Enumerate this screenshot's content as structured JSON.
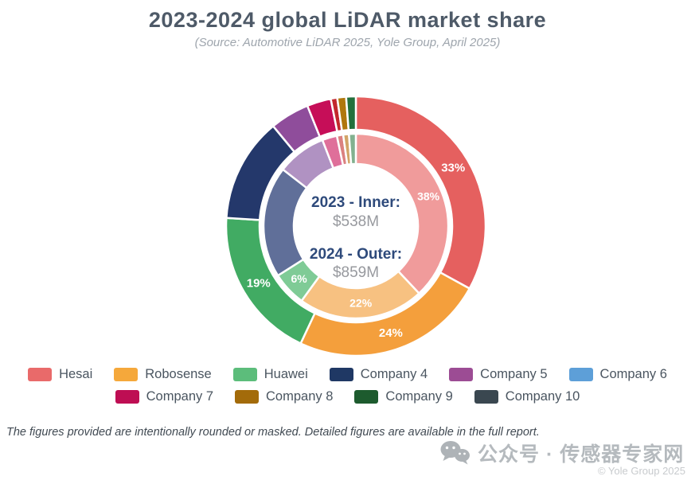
{
  "header": {
    "title": "2023-2024 global LiDAR market share",
    "subtitle": "(Source: Automotive LiDAR 2025, Yole Group, April 2025)"
  },
  "chart_data": {
    "type": "donut-double",
    "unit": "percent market share",
    "legend_position": "bottom",
    "center": {
      "inner_title": "2023 - Inner:",
      "inner_value": "$538M",
      "outer_title": "2024 - Outer:",
      "outer_value": "$859M"
    },
    "rings": [
      {
        "year": "2024",
        "position": "outer",
        "total_label": "$859M",
        "slices": [
          {
            "name": "Hesai",
            "value": 33,
            "label": "33%",
            "color": "#E5605F"
          },
          {
            "name": "Robosense",
            "value": 24,
            "label": "24%",
            "color": "#F49F3C"
          },
          {
            "name": "Huawei",
            "value": 19,
            "label": "19%",
            "color": "#41AB63"
          },
          {
            "name": "Company 4",
            "value": 13,
            "label": "",
            "color": "#24386B"
          },
          {
            "name": "Company 5",
            "value": 4.9,
            "label": "",
            "color": "#8F4D9B"
          },
          {
            "name": "Company 6",
            "value": 0,
            "label": "",
            "color": "#5D9FD8"
          },
          {
            "name": "Company 7",
            "value": 3.0,
            "label": "",
            "color": "#C60E58"
          },
          {
            "name": "Company 8",
            "value": 0.8,
            "label": "",
            "color": "#C2282E"
          },
          {
            "name": "Company 9",
            "value": 1.1,
            "label": "",
            "color": "#B0770D"
          },
          {
            "name": "Company 10",
            "value": 1.2,
            "label": "",
            "color": "#23703C"
          }
        ]
      },
      {
        "year": "2023",
        "position": "inner",
        "total_label": "$538M",
        "slices": [
          {
            "name": "Hesai",
            "value": 38,
            "label": "38%",
            "color": "#F09B9B"
          },
          {
            "name": "Robosense",
            "value": 22,
            "label": "22%",
            "color": "#F7C181"
          },
          {
            "name": "Huawei",
            "value": 6,
            "label": "6%",
            "color": "#7FCB96"
          },
          {
            "name": "Company 4",
            "value": 19.5,
            "label": "",
            "color": "#606F99"
          },
          {
            "name": "Company 5",
            "value": 8.6,
            "label": "",
            "color": "#B092C2"
          },
          {
            "name": "Company 6",
            "value": 0,
            "label": "",
            "color": "#8FC3E8"
          },
          {
            "name": "Company 7",
            "value": 2.6,
            "label": "",
            "color": "#DF6F9A"
          },
          {
            "name": "Company 8",
            "value": 1.1,
            "label": "",
            "color": "#DB8180"
          },
          {
            "name": "Company 9",
            "value": 1.0,
            "label": "",
            "color": "#D2A468"
          },
          {
            "name": "Company 10",
            "value": 1.2,
            "label": "",
            "color": "#82B18F"
          }
        ]
      }
    ]
  },
  "legend": {
    "rows": [
      [
        {
          "label": "Hesai",
          "color": "#E96A6A"
        },
        {
          "label": "Robosense",
          "color": "#F5A83B"
        },
        {
          "label": "Huawei",
          "color": "#5CBD7B"
        },
        {
          "label": "Company 4",
          "color": "#1F3864"
        },
        {
          "label": "Company 5",
          "color": "#9C4C94"
        },
        {
          "label": "Company 6",
          "color": "#5D9FD8"
        }
      ],
      [
        {
          "label": "Company 7",
          "color": "#BE0E53"
        },
        {
          "label": "Company 8",
          "color": "#A36B0A"
        },
        {
          "label": "Company 9",
          "color": "#1D5B2E"
        },
        {
          "label": "Company 10",
          "color": "#3A4750"
        }
      ]
    ]
  },
  "footer": {
    "note": "The figures provided are intentionally rounded or masked. Detailed figures are available in the full report."
  },
  "watermark": {
    "icon": "wechat-icon",
    "label": "公众号 · 传感器专家网",
    "copyright": "© Yole Group 2025"
  }
}
